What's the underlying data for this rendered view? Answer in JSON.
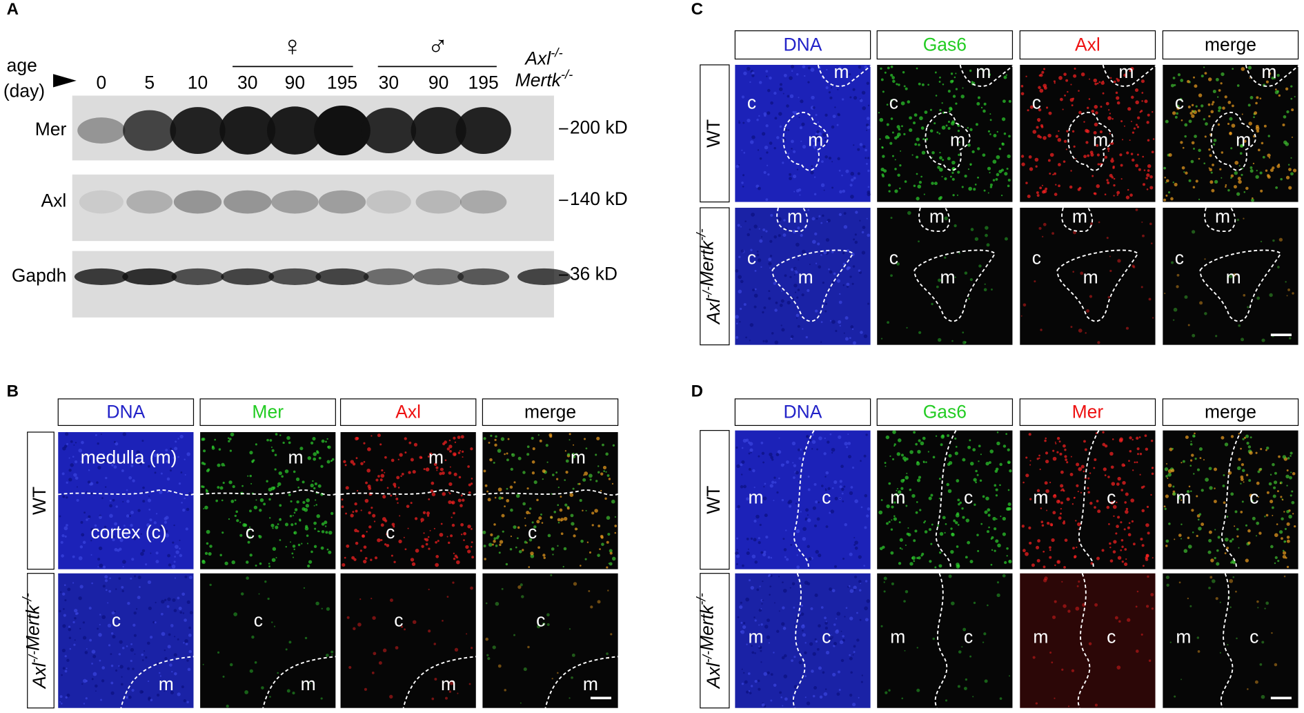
{
  "panel_a": {
    "letter": "A",
    "age_label": [
      "age",
      "(day)"
    ],
    "female_symbol": "♀",
    "male_symbol": "♂",
    "lanes": [
      "0",
      "5",
      "10",
      "30",
      "90",
      "195",
      "30",
      "90",
      "195"
    ],
    "knockout_label": [
      {
        "text": "Axl",
        "sup": "-/-"
      },
      {
        "text": "Mertk",
        "sup": "-/-"
      }
    ],
    "blots": [
      {
        "label": "Mer",
        "marker": "200 kD"
      },
      {
        "label": "Axl",
        "marker": "140 kD"
      },
      {
        "label": "Gapdh",
        "marker": "36 kD"
      }
    ]
  },
  "image_panels": [
    {
      "letter": "B",
      "columns": [
        {
          "label": "DNA",
          "color": "#2222c8"
        },
        {
          "label": "Mer",
          "color": "#22cc22"
        },
        {
          "label": "Axl",
          "color": "#ee1111"
        },
        {
          "label": "merge",
          "color": "#000000"
        }
      ],
      "rows": [
        {
          "label": [
            {
              "text": "WT"
            }
          ],
          "annotations": [
            [
              "medulla (m)",
              "cortex (c)"
            ],
            [
              "m",
              "c"
            ],
            [
              "m",
              "c"
            ],
            [
              "m",
              "c"
            ]
          ]
        },
        {
          "label": [
            {
              "text": "Axl",
              "sup": "-/-"
            },
            {
              "text": "Mertk",
              "sup": "-/-"
            }
          ],
          "annotations": [
            [
              "c",
              "m"
            ],
            [
              "c",
              "m"
            ],
            [
              "c",
              "m"
            ],
            [
              "c",
              "m"
            ]
          ]
        }
      ]
    },
    {
      "letter": "C",
      "columns": [
        {
          "label": "DNA",
          "color": "#2222c8"
        },
        {
          "label": "Gas6",
          "color": "#22cc22"
        },
        {
          "label": "Axl",
          "color": "#ee1111"
        },
        {
          "label": "merge",
          "color": "#000000"
        }
      ],
      "rows": [
        {
          "label": [
            {
              "text": "WT"
            }
          ],
          "annotations": [
            [
              "m",
              "c",
              "m"
            ],
            [
              "m",
              "c",
              "m"
            ],
            [
              "m",
              "c",
              "m"
            ],
            [
              "m",
              "c",
              "m"
            ]
          ]
        },
        {
          "label": [
            {
              "text": "Axl",
              "sup": "-/-"
            },
            {
              "text": "Mertk",
              "sup": "-/-"
            }
          ],
          "annotations": [
            [
              "m",
              "c",
              "m"
            ],
            [
              "m",
              "c",
              "m"
            ],
            [
              "m",
              "c",
              "m"
            ],
            [
              "m",
              "c",
              "m"
            ]
          ]
        }
      ]
    },
    {
      "letter": "D",
      "columns": [
        {
          "label": "DNA",
          "color": "#2222c8"
        },
        {
          "label": "Gas6",
          "color": "#22cc22"
        },
        {
          "label": "Mer",
          "color": "#ee1111"
        },
        {
          "label": "merge",
          "color": "#000000"
        }
      ],
      "rows": [
        {
          "label": [
            {
              "text": "WT"
            }
          ],
          "annotations": [
            [
              "m",
              "c"
            ],
            [
              "m",
              "c"
            ],
            [
              "m",
              "c"
            ],
            [
              "m",
              "c"
            ]
          ]
        },
        {
          "label": [
            {
              "text": "Axl",
              "sup": "-/-"
            },
            {
              "text": "Mertk",
              "sup": "-/-"
            }
          ],
          "annotations": [
            [
              "m",
              "c"
            ],
            [
              "m",
              "c"
            ],
            [
              "m",
              "c"
            ],
            [
              "m",
              "c"
            ]
          ]
        }
      ]
    }
  ]
}
